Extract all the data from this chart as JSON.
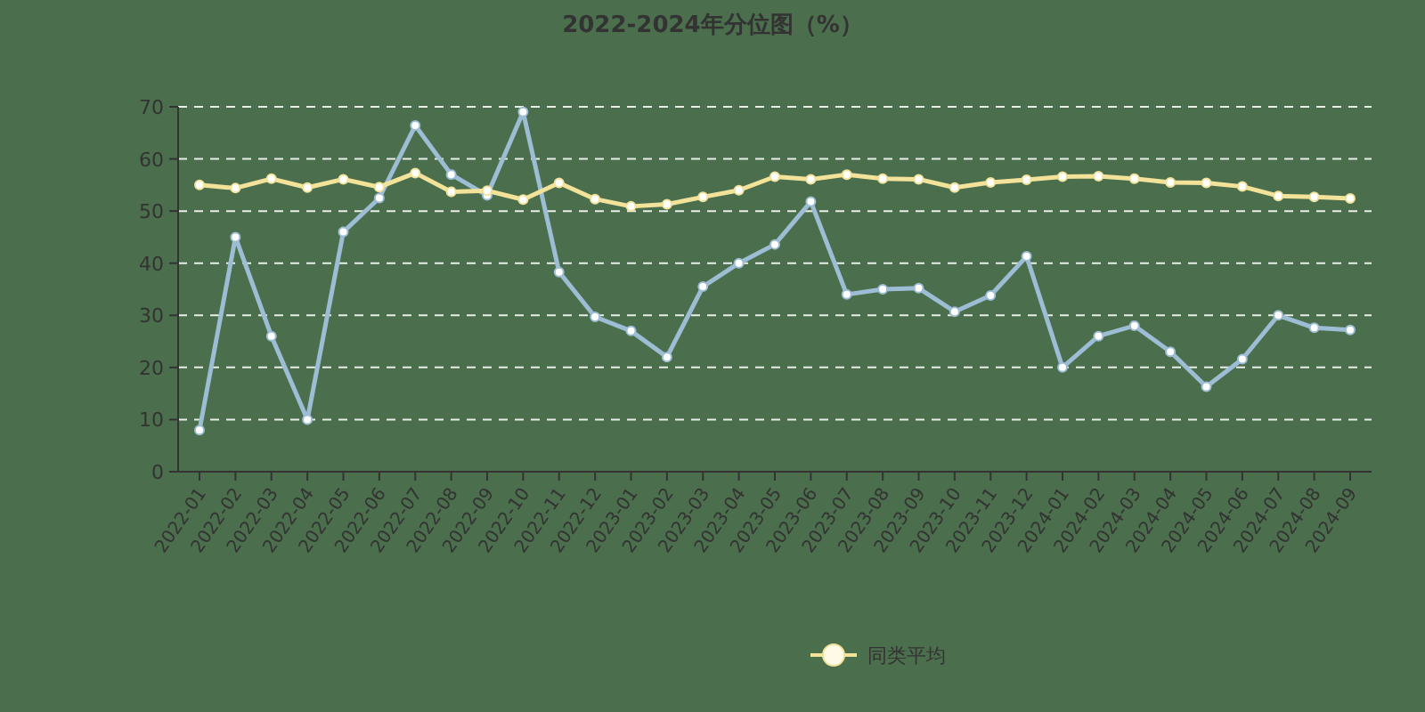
{
  "chart_data": {
    "type": "line",
    "title": "2022-2024年分位图（%）",
    "categories": [
      "2022-01",
      "2022-02",
      "2022-03",
      "2022-04",
      "2022-05",
      "2022-06",
      "2022-07",
      "2022-08",
      "2022-09",
      "2022-10",
      "2022-11",
      "2022-12",
      "2023-01",
      "2023-02",
      "2023-03",
      "2023-04",
      "2023-05",
      "2023-06",
      "2023-07",
      "2023-08",
      "2023-09",
      "2023-10",
      "2023-11",
      "2023-12",
      "2024-01",
      "2024-02",
      "2024-03",
      "2024-04",
      "2024-05",
      "2024-06",
      "2024-07",
      "2024-08",
      "2024-09"
    ],
    "series": [
      {
        "color": "#9dbdd4",
        "values": [
          8,
          45,
          26,
          10,
          46,
          52.5,
          66.4,
          57,
          53,
          69,
          38.3,
          29.7,
          27,
          22,
          35.5,
          40,
          43.6,
          51.8,
          34,
          35,
          35.2,
          30.7,
          33.8,
          41.3,
          20,
          26,
          28,
          23,
          16.3,
          21.6,
          30,
          27.6,
          27.2
        ]
      },
      {
        "name": "同类平均",
        "color": "#f2e29a",
        "values": [
          55,
          54.4,
          56.2,
          54.5,
          56.1,
          54.6,
          57.3,
          53.7,
          53.9,
          52.2,
          55.4,
          52.3,
          50.9,
          51.3,
          52.7,
          54,
          56.6,
          56.1,
          57,
          56.2,
          56.1,
          54.5,
          55.5,
          56,
          56.6,
          56.7,
          56.2,
          55.5,
          55.4,
          54.7,
          52.9,
          52.7,
          52.4
        ]
      }
    ],
    "ylim": [
      0,
      70
    ],
    "yticks": [
      0,
      10,
      20,
      30,
      40,
      50,
      60,
      70
    ],
    "grid": "y",
    "legend": "bottom",
    "marker": "circle",
    "line_style": "solid"
  }
}
